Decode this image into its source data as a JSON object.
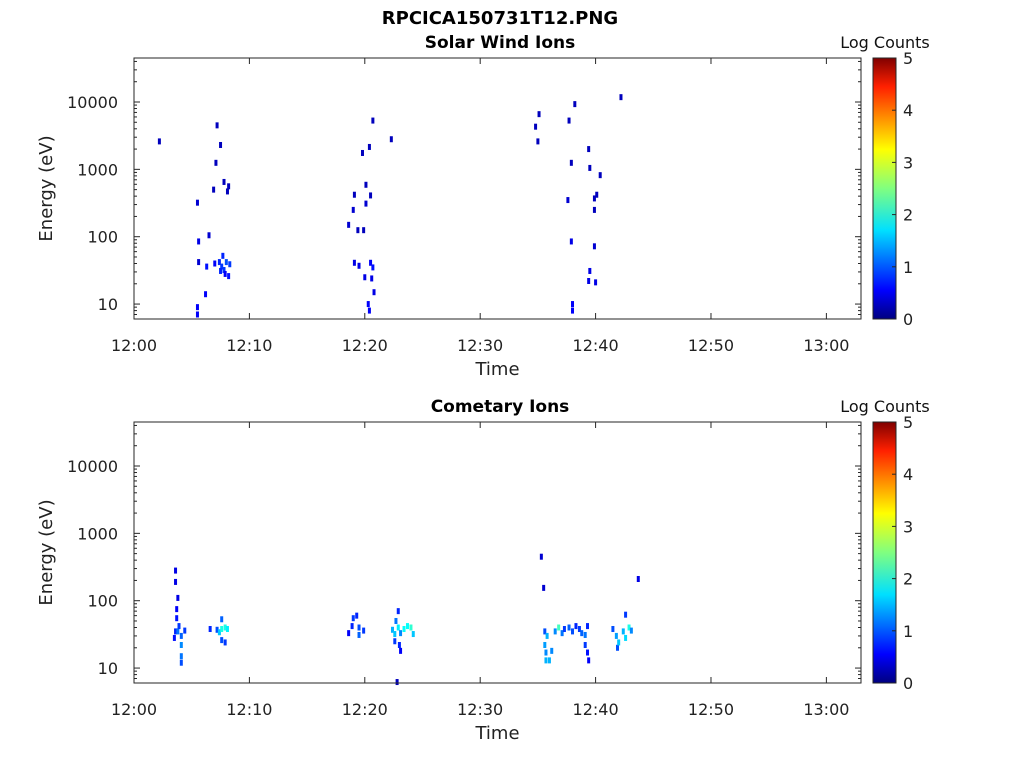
{
  "figure": {
    "title": "RPCICA150731T12.PNG"
  },
  "palette": {
    "frame": "#262626",
    "background": "#ffffff"
  },
  "chart_data": [
    {
      "type": "heatmap",
      "title": "Solar Wind Ions",
      "xlabel": "Time",
      "ylabel": "Energy (eV)",
      "xlim": [
        "12:00",
        "13:03"
      ],
      "xticks": [
        "12:00",
        "12:10",
        "12:20",
        "12:30",
        "12:40",
        "12:50",
        "13:00"
      ],
      "ylim": [
        6,
        45000
      ],
      "yscale": "log",
      "yticks": [
        10,
        100,
        1000,
        10000
      ],
      "ytick_labels": [
        "10",
        "100",
        "1000",
        "10000"
      ],
      "colorbar": {
        "label": "Log Counts",
        "range": [
          0,
          5
        ],
        "ticks": [
          "0",
          "1",
          "2",
          "3",
          "4",
          "5"
        ],
        "colormap": "jet"
      },
      "points": [
        [
          2.2,
          2600,
          0.3
        ],
        [
          5.5,
          320,
          0.4
        ],
        [
          5.6,
          85,
          0.5
        ],
        [
          5.6,
          42,
          0.4
        ],
        [
          5.5,
          7,
          0.6
        ],
        [
          5.5,
          9,
          0.6
        ],
        [
          6.2,
          14,
          0.6
        ],
        [
          6.3,
          36,
          0.7
        ],
        [
          6.5,
          105,
          0.4
        ],
        [
          6.9,
          500,
          0.3
        ],
        [
          7.2,
          4500,
          0.3
        ],
        [
          7.1,
          1250,
          0.3
        ],
        [
          7.5,
          2300,
          0.3
        ],
        [
          7.8,
          650,
          0.3
        ],
        [
          8.2,
          560,
          0.3
        ],
        [
          8.1,
          470,
          0.3
        ],
        [
          7.0,
          40,
          0.6
        ],
        [
          7.4,
          42,
          0.8
        ],
        [
          7.6,
          36,
          0.9
        ],
        [
          7.8,
          32,
          0.9
        ],
        [
          8.0,
          42,
          1.0
        ],
        [
          7.7,
          52,
          0.8
        ],
        [
          8.3,
          39,
          0.9
        ],
        [
          8.2,
          26,
          0.7
        ],
        [
          7.9,
          28,
          0.6
        ],
        [
          7.5,
          31,
          0.8
        ],
        [
          18.6,
          150,
          0.4
        ],
        [
          19.0,
          250,
          0.4
        ],
        [
          19.1,
          420,
          0.3
        ],
        [
          19.4,
          125,
          0.3
        ],
        [
          19.9,
          125,
          0.3
        ],
        [
          19.8,
          1750,
          0.3
        ],
        [
          20.1,
          310,
          0.4
        ],
        [
          20.1,
          590,
          0.3
        ],
        [
          20.5,
          410,
          0.3
        ],
        [
          20.4,
          2150,
          0.3
        ],
        [
          20.7,
          5300,
          0.3
        ],
        [
          22.3,
          2800,
          0.3
        ],
        [
          19.1,
          41,
          0.5
        ],
        [
          19.5,
          37,
          0.5
        ],
        [
          20.0,
          25,
          0.5
        ],
        [
          20.5,
          41,
          0.6
        ],
        [
          20.7,
          35,
          0.7
        ],
        [
          20.6,
          24,
          0.5
        ],
        [
          20.8,
          15,
          0.5
        ],
        [
          20.4,
          8,
          0.6
        ],
        [
          20.3,
          10,
          0.6
        ],
        [
          34.8,
          4300,
          0.3
        ],
        [
          35.0,
          2600,
          0.3
        ],
        [
          35.1,
          6600,
          0.3
        ],
        [
          37.7,
          5300,
          0.3
        ],
        [
          38.2,
          9300,
          0.3
        ],
        [
          37.6,
          350,
          0.4
        ],
        [
          37.9,
          1250,
          0.3
        ],
        [
          37.9,
          85,
          0.5
        ],
        [
          38.0,
          8,
          0.6
        ],
        [
          38.0,
          10,
          0.6
        ],
        [
          39.4,
          2000,
          0.3
        ],
        [
          39.5,
          1050,
          0.3
        ],
        [
          39.9,
          370,
          0.3
        ],
        [
          40.1,
          420,
          0.3
        ],
        [
          39.9,
          250,
          0.3
        ],
        [
          40.4,
          820,
          0.3
        ],
        [
          39.9,
          72,
          0.4
        ],
        [
          39.5,
          31,
          0.5
        ],
        [
          39.4,
          22,
          0.5
        ],
        [
          40.0,
          21,
          0.5
        ],
        [
          42.2,
          11800,
          0.3
        ]
      ]
    },
    {
      "type": "heatmap",
      "title": "Cometary Ions",
      "xlabel": "Time",
      "ylabel": "Energy (eV)",
      "xlim": [
        "12:00",
        "13:03"
      ],
      "xticks": [
        "12:00",
        "12:10",
        "12:20",
        "12:30",
        "12:40",
        "12:50",
        "13:00"
      ],
      "ylim": [
        6,
        45000
      ],
      "yscale": "log",
      "yticks": [
        10,
        100,
        1000,
        10000
      ],
      "ytick_labels": [
        "10",
        "100",
        "1000",
        "10000"
      ],
      "colorbar": {
        "label": "Log Counts",
        "range": [
          0,
          5
        ],
        "ticks": [
          "0",
          "1",
          "2",
          "3",
          "4",
          "5"
        ],
        "colormap": "jet"
      },
      "points": [
        [
          3.6,
          280,
          0.5
        ],
        [
          3.6,
          190,
          0.5
        ],
        [
          3.8,
          110,
          0.5
        ],
        [
          3.7,
          75,
          0.6
        ],
        [
          3.7,
          55,
          0.7
        ],
        [
          3.6,
          35,
          0.8
        ],
        [
          3.8,
          35,
          1.2
        ],
        [
          3.9,
          42,
          0.9
        ],
        [
          4.1,
          30,
          1.1
        ],
        [
          4.1,
          22,
          1.3
        ],
        [
          4.1,
          15,
          1.2
        ],
        [
          4.1,
          12,
          1.0
        ],
        [
          4.4,
          36,
          0.9
        ],
        [
          3.5,
          28,
          0.7
        ],
        [
          6.6,
          38,
          0.8
        ],
        [
          7.2,
          37,
          1.0
        ],
        [
          7.4,
          34,
          1.6
        ],
        [
          7.6,
          38,
          2.0
        ],
        [
          7.9,
          40,
          2.0
        ],
        [
          8.1,
          38,
          1.8
        ],
        [
          7.6,
          53,
          1.1
        ],
        [
          7.6,
          26,
          1.0
        ],
        [
          7.9,
          24,
          0.9
        ],
        [
          18.6,
          33,
          0.6
        ],
        [
          18.9,
          42,
          0.8
        ],
        [
          19.0,
          55,
          0.9
        ],
        [
          19.3,
          60,
          0.8
        ],
        [
          19.5,
          40,
          1.0
        ],
        [
          19.5,
          31,
          1.1
        ],
        [
          19.9,
          36,
          0.9
        ],
        [
          22.4,
          37,
          1.5
        ],
        [
          22.6,
          32,
          1.6
        ],
        [
          22.9,
          40,
          1.8
        ],
        [
          22.7,
          50,
          1.2
        ],
        [
          22.9,
          70,
          0.8
        ],
        [
          23.1,
          33,
          1.3
        ],
        [
          23.4,
          38,
          1.9
        ],
        [
          23.7,
          42,
          1.9
        ],
        [
          24.0,
          40,
          2.1
        ],
        [
          24.2,
          32,
          1.6
        ],
        [
          22.6,
          25,
          0.9
        ],
        [
          23.0,
          22,
          0.8
        ],
        [
          23.1,
          18,
          0.6
        ],
        [
          22.8,
          6.2,
          0.3
        ],
        [
          35.3,
          450,
          0.4
        ],
        [
          35.5,
          155,
          0.4
        ],
        [
          35.6,
          35,
          1.0
        ],
        [
          35.8,
          30,
          1.5
        ],
        [
          35.6,
          22,
          1.4
        ],
        [
          35.7,
          17,
          1.3
        ],
        [
          35.7,
          13,
          1.5
        ],
        [
          36.0,
          13,
          1.5
        ],
        [
          36.2,
          18,
          1.3
        ],
        [
          36.5,
          35,
          1.3
        ],
        [
          36.8,
          40,
          2.2
        ],
        [
          37.1,
          33,
          1.2
        ],
        [
          37.3,
          38,
          0.9
        ],
        [
          37.7,
          40,
          1.1
        ],
        [
          38.0,
          35,
          1.0
        ],
        [
          38.3,
          42,
          0.8
        ],
        [
          38.6,
          38,
          0.9
        ],
        [
          38.8,
          33,
          1.1
        ],
        [
          39.1,
          31,
          1.2
        ],
        [
          39.3,
          42,
          0.8
        ],
        [
          39.1,
          22,
          0.9
        ],
        [
          39.3,
          17,
          0.7
        ],
        [
          39.4,
          13,
          0.6
        ],
        [
          41.5,
          38,
          1.0
        ],
        [
          41.8,
          30,
          1.4
        ],
        [
          41.9,
          20,
          1.0
        ],
        [
          42.0,
          24,
          1.6
        ],
        [
          42.4,
          35,
          1.5
        ],
        [
          42.6,
          28,
          1.7
        ],
        [
          42.9,
          40,
          2.0
        ],
        [
          43.1,
          36,
          1.3
        ],
        [
          42.6,
          62,
          0.9
        ],
        [
          43.7,
          210,
          0.5
        ]
      ]
    }
  ]
}
